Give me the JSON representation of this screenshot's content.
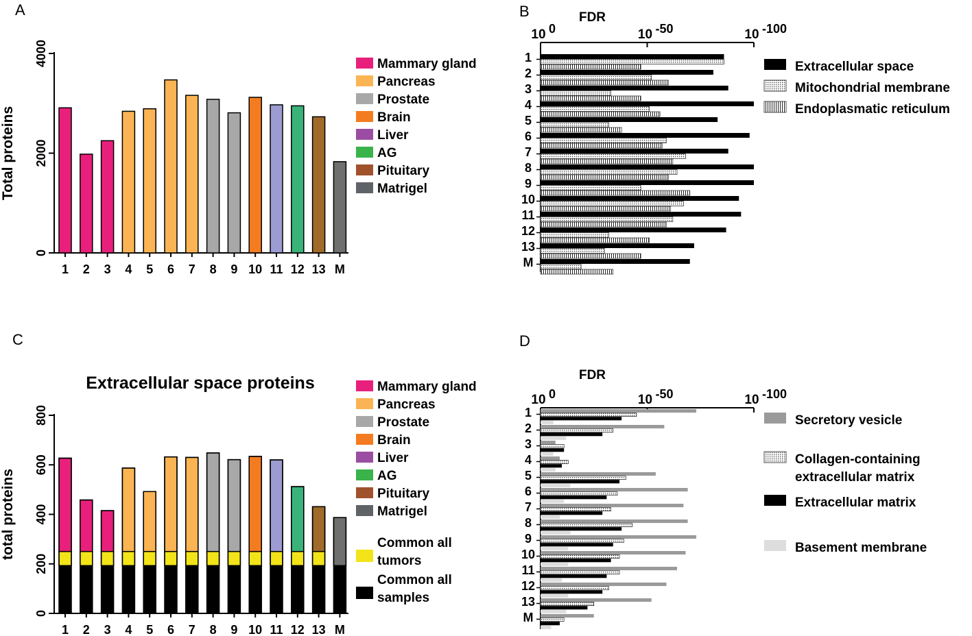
{
  "colors": {
    "mammary": "#e8207c",
    "pancreas": "#fbb454",
    "prostate": "#a8a8a8",
    "brain": "#f47c20",
    "liver": "#9b4da3",
    "ag": "#3ab34a",
    "pituitary": "#a0522d",
    "matrigel": "#5f6367",
    "panelA_liver_bar": "#9c9cd2",
    "panelA_ag_bar": "#3ab37a",
    "panelA_pit_bar": "#a06a2a",
    "panelA_mat_bar": "#6f6f6f",
    "yellow": "#f2e418",
    "black": "#000000",
    "lightgray": "#dddddd",
    "medgray": "#9a9a9a"
  },
  "panels": {
    "A": {
      "label": "A"
    },
    "B": {
      "label": "B"
    },
    "C": {
      "label": "C"
    },
    "D": {
      "label": "D"
    }
  },
  "chart_data": [
    {
      "panel": "A",
      "type": "bar",
      "title": "",
      "xlabel": "",
      "ylabel": "Total proteins",
      "ylim": [
        0,
        4000
      ],
      "yticks": [
        "0",
        "2000",
        "4000"
      ],
      "categories": [
        "1",
        "2",
        "3",
        "4",
        "5",
        "6",
        "7",
        "8",
        "9",
        "10",
        "11",
        "12",
        "13",
        "M"
      ],
      "values": [
        2910,
        1980,
        2250,
        2840,
        2890,
        3470,
        3160,
        3080,
        2810,
        3120,
        2970,
        2950,
        2730,
        1830
      ],
      "bar_colors": [
        "mammary",
        "mammary",
        "mammary",
        "pancreas",
        "pancreas",
        "pancreas",
        "pancreas",
        "prostate",
        "prostate",
        "brain",
        "panelA_liver_bar",
        "panelA_ag_bar",
        "panelA_pit_bar",
        "panelA_mat_bar"
      ],
      "legend": [
        {
          "label": "Mammary gland",
          "color": "mammary"
        },
        {
          "label": "Pancreas",
          "color": "pancreas"
        },
        {
          "label": "Prostate",
          "color": "prostate"
        },
        {
          "label": "Brain",
          "color": "brain"
        },
        {
          "label": "Liver",
          "color": "liver"
        },
        {
          "label": "AG",
          "color": "ag"
        },
        {
          "label": "Pituitary",
          "color": "pituitary"
        },
        {
          "label": "Matrigel",
          "color": "matrigel"
        }
      ]
    },
    {
      "panel": "B",
      "type": "bar",
      "orientation": "horizontal",
      "xlabel": "FDR",
      "axis_ticks": [
        {
          "base": "10",
          "exp": "0"
        },
        {
          "base": "10",
          "exp": "-50"
        },
        {
          "base": "10",
          "exp": "-100"
        }
      ],
      "xlim_exponent": [
        0,
        100
      ],
      "categories": [
        "1",
        "2",
        "3",
        "4",
        "5",
        "6",
        "7",
        "8",
        "9",
        "10",
        "11",
        "12",
        "13",
        "M"
      ],
      "series": [
        {
          "name": "Extracellular space",
          "pattern": "solid",
          "values": [
            86,
            81,
            88,
            100,
            83,
            98,
            88,
            100,
            100,
            93,
            94,
            87,
            72,
            70
          ]
        },
        {
          "name": "Mitochondrial membrane",
          "pattern": "dots",
          "values": [
            86,
            52,
            33,
            51,
            32,
            59,
            68,
            64,
            47,
            67,
            62,
            32,
            30,
            19
          ]
        },
        {
          "name": "Endoplasmatic reticulum",
          "pattern": "vlines",
          "values": [
            47,
            60,
            47,
            56,
            38,
            57,
            62,
            60,
            70,
            61,
            59,
            51,
            47,
            34
          ]
        }
      ],
      "legend": [
        {
          "label": "Extracellular space",
          "pattern": "solid"
        },
        {
          "label": "Mitochondrial membrane",
          "pattern": "dots"
        },
        {
          "label": "Endoplasmatic reticulum",
          "pattern": "vlines"
        }
      ]
    },
    {
      "panel": "C",
      "type": "bar",
      "stacked": true,
      "title": "Extracellular space proteins",
      "xlabel": "",
      "ylabel": "total proteins",
      "ylim": [
        0,
        800
      ],
      "yticks": [
        "0",
        "200",
        "400",
        "600",
        "800"
      ],
      "categories": [
        "1",
        "2",
        "3",
        "4",
        "5",
        "6",
        "7",
        "8",
        "9",
        "10",
        "11",
        "12",
        "13",
        "M"
      ],
      "totals": [
        627,
        458,
        415,
        587,
        492,
        632,
        630,
        648,
        621,
        634,
        620,
        512,
        431,
        387
      ],
      "common_all_samples": [
        193,
        193,
        193,
        193,
        193,
        193,
        193,
        193,
        193,
        193,
        193,
        193,
        193,
        193
      ],
      "common_all_tumors": [
        57,
        57,
        57,
        57,
        57,
        57,
        57,
        57,
        57,
        57,
        57,
        57,
        57,
        0
      ],
      "bar_colors": [
        "mammary",
        "mammary",
        "mammary",
        "pancreas",
        "pancreas",
        "pancreas",
        "pancreas",
        "prostate",
        "prostate",
        "brain",
        "panelA_liver_bar",
        "panelA_ag_bar",
        "panelA_pit_bar",
        "panelA_mat_bar"
      ],
      "legend": [
        {
          "label": "Mammary gland",
          "color": "mammary"
        },
        {
          "label": "Pancreas",
          "color": "pancreas"
        },
        {
          "label": "Prostate",
          "color": "prostate"
        },
        {
          "label": "Brain",
          "color": "brain"
        },
        {
          "label": "Liver",
          "color": "liver"
        },
        {
          "label": "AG",
          "color": "ag"
        },
        {
          "label": "Pituitary",
          "color": "pituitary"
        },
        {
          "label": "Matrigel",
          "color": "matrigel"
        }
      ],
      "legend_extra": [
        {
          "lines": [
            "Common all",
            "tumors"
          ],
          "color": "yellow"
        },
        {
          "lines": [
            "Common all",
            "samples"
          ],
          "color": "black"
        }
      ]
    },
    {
      "panel": "D",
      "type": "bar",
      "orientation": "horizontal",
      "xlabel": "FDR",
      "axis_ticks": [
        {
          "base": "10",
          "exp": "0"
        },
        {
          "base": "10",
          "exp": "-50"
        },
        {
          "base": "10",
          "exp": "-100"
        }
      ],
      "xlim_exponent": [
        0,
        100
      ],
      "categories": [
        "1",
        "2",
        "3",
        "4",
        "5",
        "6",
        "7",
        "8",
        "9",
        "10",
        "11",
        "12",
        "13",
        "M"
      ],
      "series": [
        {
          "name": "Secretory vesicle",
          "pattern": "medgray",
          "values": [
            73,
            58,
            7,
            9,
            54,
            69,
            67,
            69,
            73,
            68,
            64,
            59,
            52,
            25
          ]
        },
        {
          "name": "Collagen-containing extracellular matrix",
          "pattern": "dots",
          "values": [
            45,
            34,
            11,
            13,
            40,
            36,
            33,
            43,
            39,
            37,
            37,
            32,
            25,
            11
          ]
        },
        {
          "name": "Extracellular matrix",
          "pattern": "solid",
          "values": [
            38,
            29,
            11,
            10,
            37,
            31,
            29,
            38,
            34,
            33,
            31,
            29,
            22,
            9
          ]
        },
        {
          "name": "Basement membrane",
          "pattern": "lightgray",
          "values": [
            6,
            12,
            6,
            7,
            14,
            11,
            9,
            14,
            13,
            13,
            10,
            13,
            12,
            5
          ]
        }
      ],
      "legend": [
        {
          "lines": [
            "Secretory vesicle"
          ],
          "pattern": "medgray"
        },
        {
          "lines": [
            "Collagen-containing",
            "extracellular matrix"
          ],
          "pattern": "dots"
        },
        {
          "lines": [
            "Extracellular matrix"
          ],
          "pattern": "solid"
        },
        {
          "lines": [
            "Basement membrane"
          ],
          "pattern": "lightgray"
        }
      ]
    }
  ]
}
